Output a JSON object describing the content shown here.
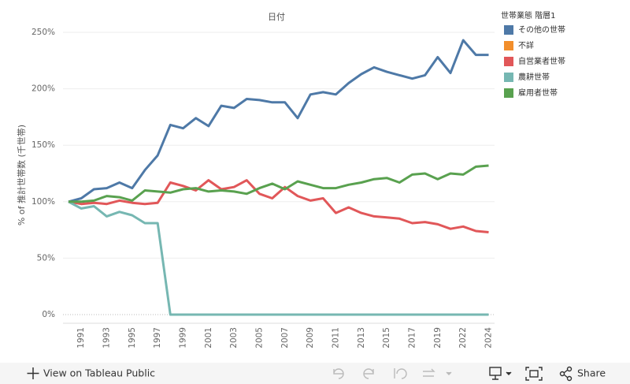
{
  "chart_data": {
    "type": "line",
    "title": "日付",
    "y_label": "% of 推計世帯数 (千世帯)",
    "legend_title": "世帯業態 階層1",
    "categories": [
      null,
      "1991",
      null,
      "1993",
      null,
      "1995",
      null,
      "1997",
      null,
      "1999",
      null,
      "2001",
      null,
      "2003",
      null,
      "2005",
      null,
      "2007",
      null,
      "2009",
      null,
      "2011",
      null,
      "2013",
      null,
      "2015",
      null,
      "2017",
      null,
      "2019",
      null,
      "2022",
      null,
      "2024"
    ],
    "ylim": [
      0,
      250
    ],
    "yticks": [
      {
        "value": 0,
        "label": "0%"
      },
      {
        "value": 50,
        "label": "50%"
      },
      {
        "value": 100,
        "label": "100%"
      },
      {
        "value": 150,
        "label": "150%"
      },
      {
        "value": 200,
        "label": "200%"
      },
      {
        "value": 250,
        "label": "250%"
      }
    ],
    "grid": true,
    "series": [
      {
        "name": "その他の世帯",
        "color": "#4e79a7",
        "values": [
          100,
          103,
          111,
          112,
          117,
          112,
          128,
          141,
          168,
          165,
          174,
          167,
          185,
          183,
          191,
          190,
          188,
          188,
          174,
          195,
          197,
          195,
          205,
          213,
          219,
          215,
          212,
          209,
          212,
          228,
          214,
          243,
          230,
          230
        ]
      },
      {
        "name": "不詳",
        "color": "#f28e2b",
        "values": [
          null,
          null,
          null,
          null,
          null,
          null,
          null,
          null,
          null,
          null,
          null,
          null,
          null,
          null,
          null,
          null,
          null,
          null,
          null,
          null,
          null,
          null,
          null,
          null,
          null,
          null,
          null,
          null,
          null,
          null,
          null,
          null,
          null,
          null
        ]
      },
      {
        "name": "自営業者世帯",
        "color": "#e15759",
        "values": [
          100,
          98,
          99,
          98,
          101,
          99,
          98,
          99,
          117,
          114,
          110,
          119,
          111,
          113,
          119,
          107,
          103,
          113,
          105,
          101,
          103,
          90,
          95,
          90,
          87,
          86,
          85,
          81,
          82,
          80,
          76,
          78,
          74,
          73
        ]
      },
      {
        "name": "農耕世帯",
        "color": "#76b7b2",
        "values": [
          100,
          94,
          96,
          87,
          91,
          88,
          81,
          81,
          0,
          0,
          0,
          0,
          0,
          0,
          0,
          0,
          0,
          0,
          0,
          0,
          0,
          0,
          0,
          0,
          0,
          0,
          0,
          0,
          0,
          0,
          0,
          0,
          0,
          0
        ]
      },
      {
        "name": "雇用者世帯",
        "color": "#59a14f",
        "values": [
          100,
          100,
          101,
          105,
          104,
          101,
          110,
          109,
          108,
          111,
          112,
          109,
          110,
          109,
          107,
          112,
          116,
          111,
          118,
          115,
          112,
          112,
          115,
          117,
          120,
          121,
          117,
          124,
          125,
          120,
          125,
          124,
          131,
          132
        ]
      }
    ]
  },
  "toolbar": {
    "view": "View on Tableau Public",
    "share": "Share"
  }
}
